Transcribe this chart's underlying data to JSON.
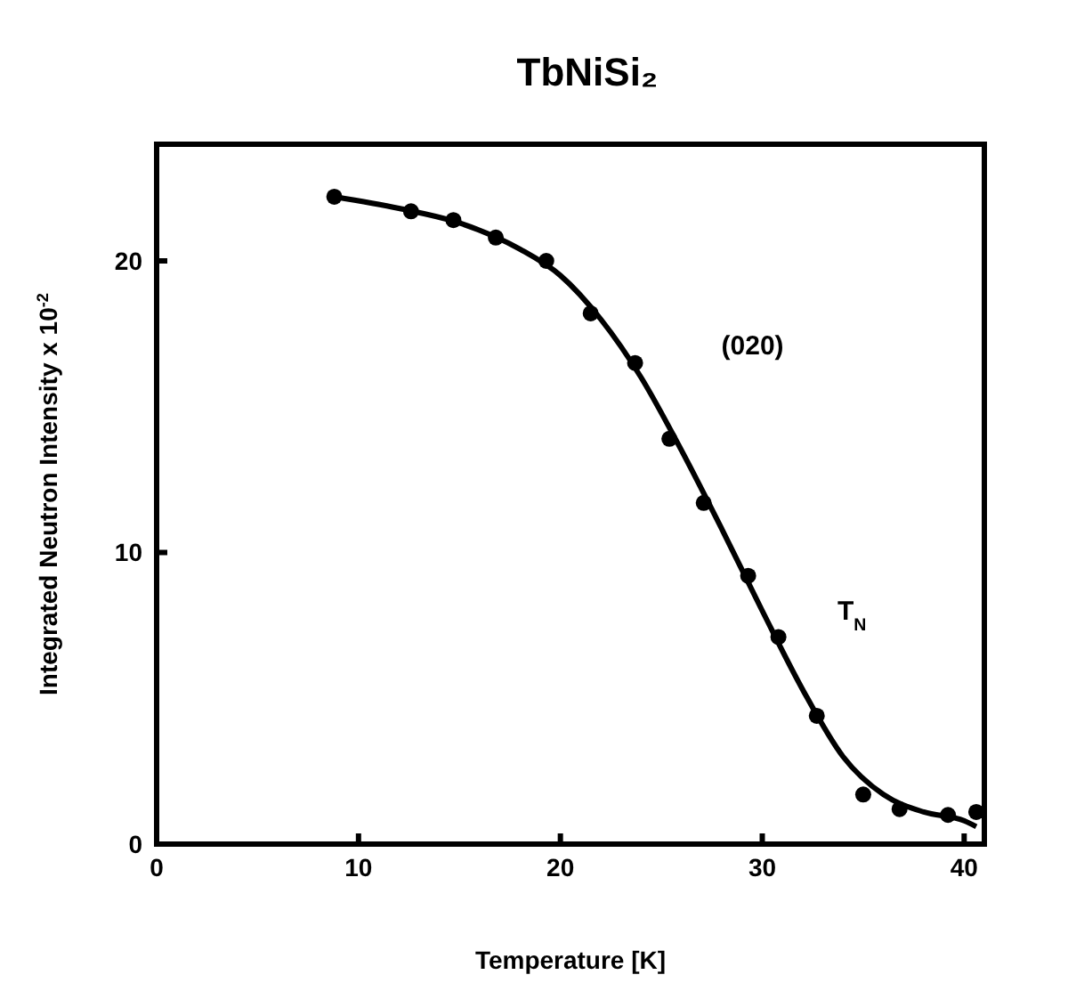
{
  "chart_data": {
    "type": "scatter",
    "title": "TbNiSi₂",
    "xlabel": "Temperature [K]",
    "ylabel": "Integrated Neutron Intensity x 10$^{-2}$",
    "annotations": [
      "(020)",
      "T$_{N}$"
    ],
    "xlim": [
      0,
      41
    ],
    "xticks": [
      0,
      10,
      20,
      30,
      40
    ],
    "ylim": [
      0,
      24
    ],
    "yticks": [
      0,
      10,
      20
    ],
    "marker": "circle",
    "series": [
      {
        "color": "#000000",
        "x": [
          8.8,
          12.6,
          14.7,
          16.8,
          19.3,
          21.5,
          23.7,
          25.4,
          27.1,
          29.3,
          30.8,
          32.7,
          35.0,
          36.8,
          39.2,
          40.6
        ],
        "values": [
          22.2,
          21.7,
          21.4,
          20.8,
          20.0,
          18.2,
          16.5,
          13.9,
          11.7,
          9.2,
          7.1,
          4.4,
          1.7,
          1.2,
          1.0,
          1.1
        ]
      },
      {
        "type": "line",
        "color": "#000000",
        "line_style": "solid",
        "marker": "none",
        "x": [
          8.8,
          12,
          15,
          18,
          20,
          22,
          24,
          26,
          28,
          30,
          32,
          34,
          36,
          38,
          40,
          40.6
        ],
        "values": [
          22.2,
          21.8,
          21.3,
          20.4,
          19.5,
          18.0,
          16.0,
          13.5,
          10.8,
          8.0,
          5.3,
          3.0,
          1.7,
          1.1,
          0.8,
          0.6
        ]
      }
    ]
  }
}
